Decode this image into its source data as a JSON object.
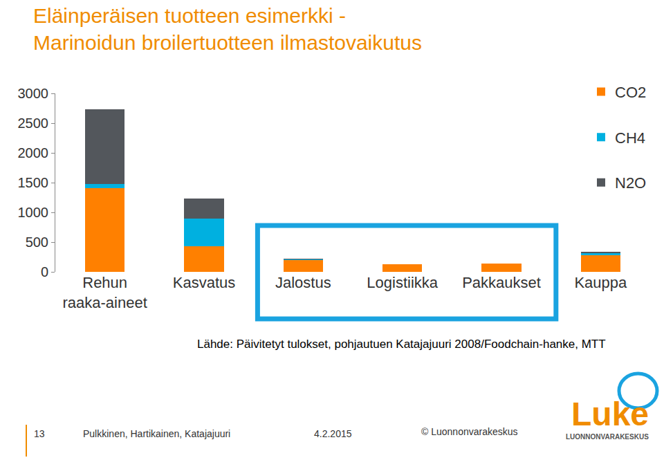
{
  "chart_data": {
    "type": "bar",
    "title": "Eläinperäisen tuotteen esimerkki - Marinoidun broilertuotteen ilmastovaikutus",
    "categories": [
      "Rehun raaka-aineet",
      "Kasvatus",
      "Jalostus",
      "Logistiikka",
      "Pakkaukset",
      "Kauppa"
    ],
    "series": [
      {
        "name": "CO2",
        "color": "#ff8000",
        "values": [
          1407,
          430,
          198,
          125,
          135,
          279
        ]
      },
      {
        "name": "CH4",
        "color": "#00b0e0",
        "values": [
          70,
          465,
          15,
          0,
          3,
          35
        ]
      },
      {
        "name": "N2O",
        "color": "#53575c",
        "values": [
          1256,
          338,
          8,
          3,
          2,
          23
        ]
      }
    ],
    "stacked": true,
    "ylim": [
      0,
      3000
    ],
    "yticks": [
      0,
      500,
      1000,
      1500,
      2000,
      2500,
      3000
    ],
    "grid": false,
    "legend": "upper right",
    "annotations": [
      "Lähde: Päivitetyt tulokset, pohjautuen Katajajuuri 2008/Foodchain-hanke, MTT"
    ]
  },
  "footer": {
    "page": "13",
    "authors": "Pulkkinen, Hartikainen, Katajajuuri",
    "date": "4.2.2015",
    "copyright": "© Luonnonvarakeskus",
    "logo": "Luke",
    "logo_subtitle": "LUONNONVARAKESKUS"
  }
}
